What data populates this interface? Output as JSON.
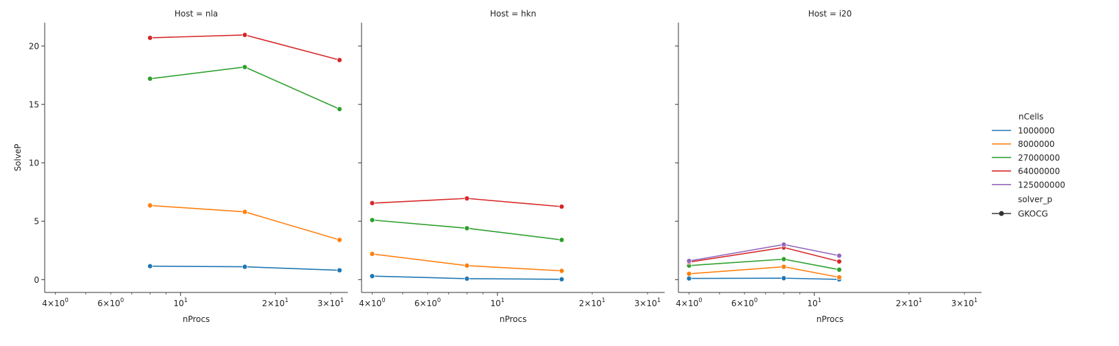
{
  "chart_data": {
    "type": "line",
    "ylabel": "SolveP",
    "xlabel": "nProcs",
    "xscale": "log",
    "x_range": [
      3.7,
      34
    ],
    "ylim": [
      -1.1,
      22
    ],
    "y_ticks": [
      0,
      5,
      10,
      15,
      20
    ],
    "x_major_ticks": [
      {
        "value": 10,
        "base": "10",
        "exp": "1"
      }
    ],
    "x_minor_ticks": [
      {
        "value": 4,
        "mant": "4",
        "base": "10",
        "exp": "0"
      },
      {
        "value": 6,
        "mant": "6",
        "base": "10",
        "exp": "0"
      },
      {
        "value": 20,
        "mant": "2",
        "base": "10",
        "exp": "1"
      },
      {
        "value": 30,
        "mant": "3",
        "base": "10",
        "exp": "1"
      }
    ],
    "legend": {
      "placement": "right",
      "hue_title": "nCells",
      "style_title": "solver_p",
      "style_entries": [
        "GKOCG"
      ],
      "entries": [
        {
          "name": "1000000",
          "color": "#1f77b4"
        },
        {
          "name": "8000000",
          "color": "#ff7f0e"
        },
        {
          "name": "27000000",
          "color": "#2ca02c"
        },
        {
          "name": "64000000",
          "color": "#d62728"
        },
        {
          "name": "125000000",
          "color": "#9467bd"
        }
      ]
    },
    "panels": [
      {
        "title": "Host = nla",
        "series": [
          {
            "name": "1000000",
            "color": "#1f77b4",
            "x": [
              8,
              16,
              32
            ],
            "y": [
              1.15,
              1.1,
              0.8
            ]
          },
          {
            "name": "8000000",
            "color": "#ff7f0e",
            "x": [
              8,
              16,
              32
            ],
            "y": [
              6.35,
              5.8,
              3.4
            ]
          },
          {
            "name": "27000000",
            "color": "#2ca02c",
            "x": [
              8,
              16,
              32
            ],
            "y": [
              17.2,
              18.2,
              14.6
            ]
          },
          {
            "name": "64000000",
            "color": "#d62728",
            "x": [
              8,
              16,
              32
            ],
            "y": [
              20.7,
              20.95,
              18.8
            ]
          }
        ]
      },
      {
        "title": "Host = hkn",
        "series": [
          {
            "name": "1000000",
            "color": "#1f77b4",
            "x": [
              4,
              8,
              16
            ],
            "y": [
              0.3,
              0.08,
              0.03
            ]
          },
          {
            "name": "8000000",
            "color": "#ff7f0e",
            "x": [
              4,
              8,
              16
            ],
            "y": [
              2.2,
              1.2,
              0.75
            ]
          },
          {
            "name": "27000000",
            "color": "#2ca02c",
            "x": [
              4,
              8,
              16
            ],
            "y": [
              5.1,
              4.4,
              3.4
            ]
          },
          {
            "name": "64000000",
            "color": "#d62728",
            "x": [
              4,
              8,
              16
            ],
            "y": [
              6.55,
              6.95,
              6.25
            ]
          }
        ]
      },
      {
        "title": "Host = i20",
        "series": [
          {
            "name": "1000000",
            "color": "#1f77b4",
            "x": [
              4,
              8,
              12
            ],
            "y": [
              0.1,
              0.12,
              0.02
            ]
          },
          {
            "name": "8000000",
            "color": "#ff7f0e",
            "x": [
              4,
              8,
              12
            ],
            "y": [
              0.5,
              1.1,
              0.2
            ]
          },
          {
            "name": "27000000",
            "color": "#2ca02c",
            "x": [
              4,
              8,
              12
            ],
            "y": [
              1.2,
              1.75,
              0.85
            ]
          },
          {
            "name": "64000000",
            "color": "#d62728",
            "x": [
              4,
              8,
              12
            ],
            "y": [
              1.5,
              2.75,
              1.55
            ]
          },
          {
            "name": "125000000",
            "color": "#9467bd",
            "x": [
              4,
              8,
              12
            ],
            "y": [
              1.6,
              3.0,
              2.05
            ]
          }
        ]
      }
    ]
  }
}
